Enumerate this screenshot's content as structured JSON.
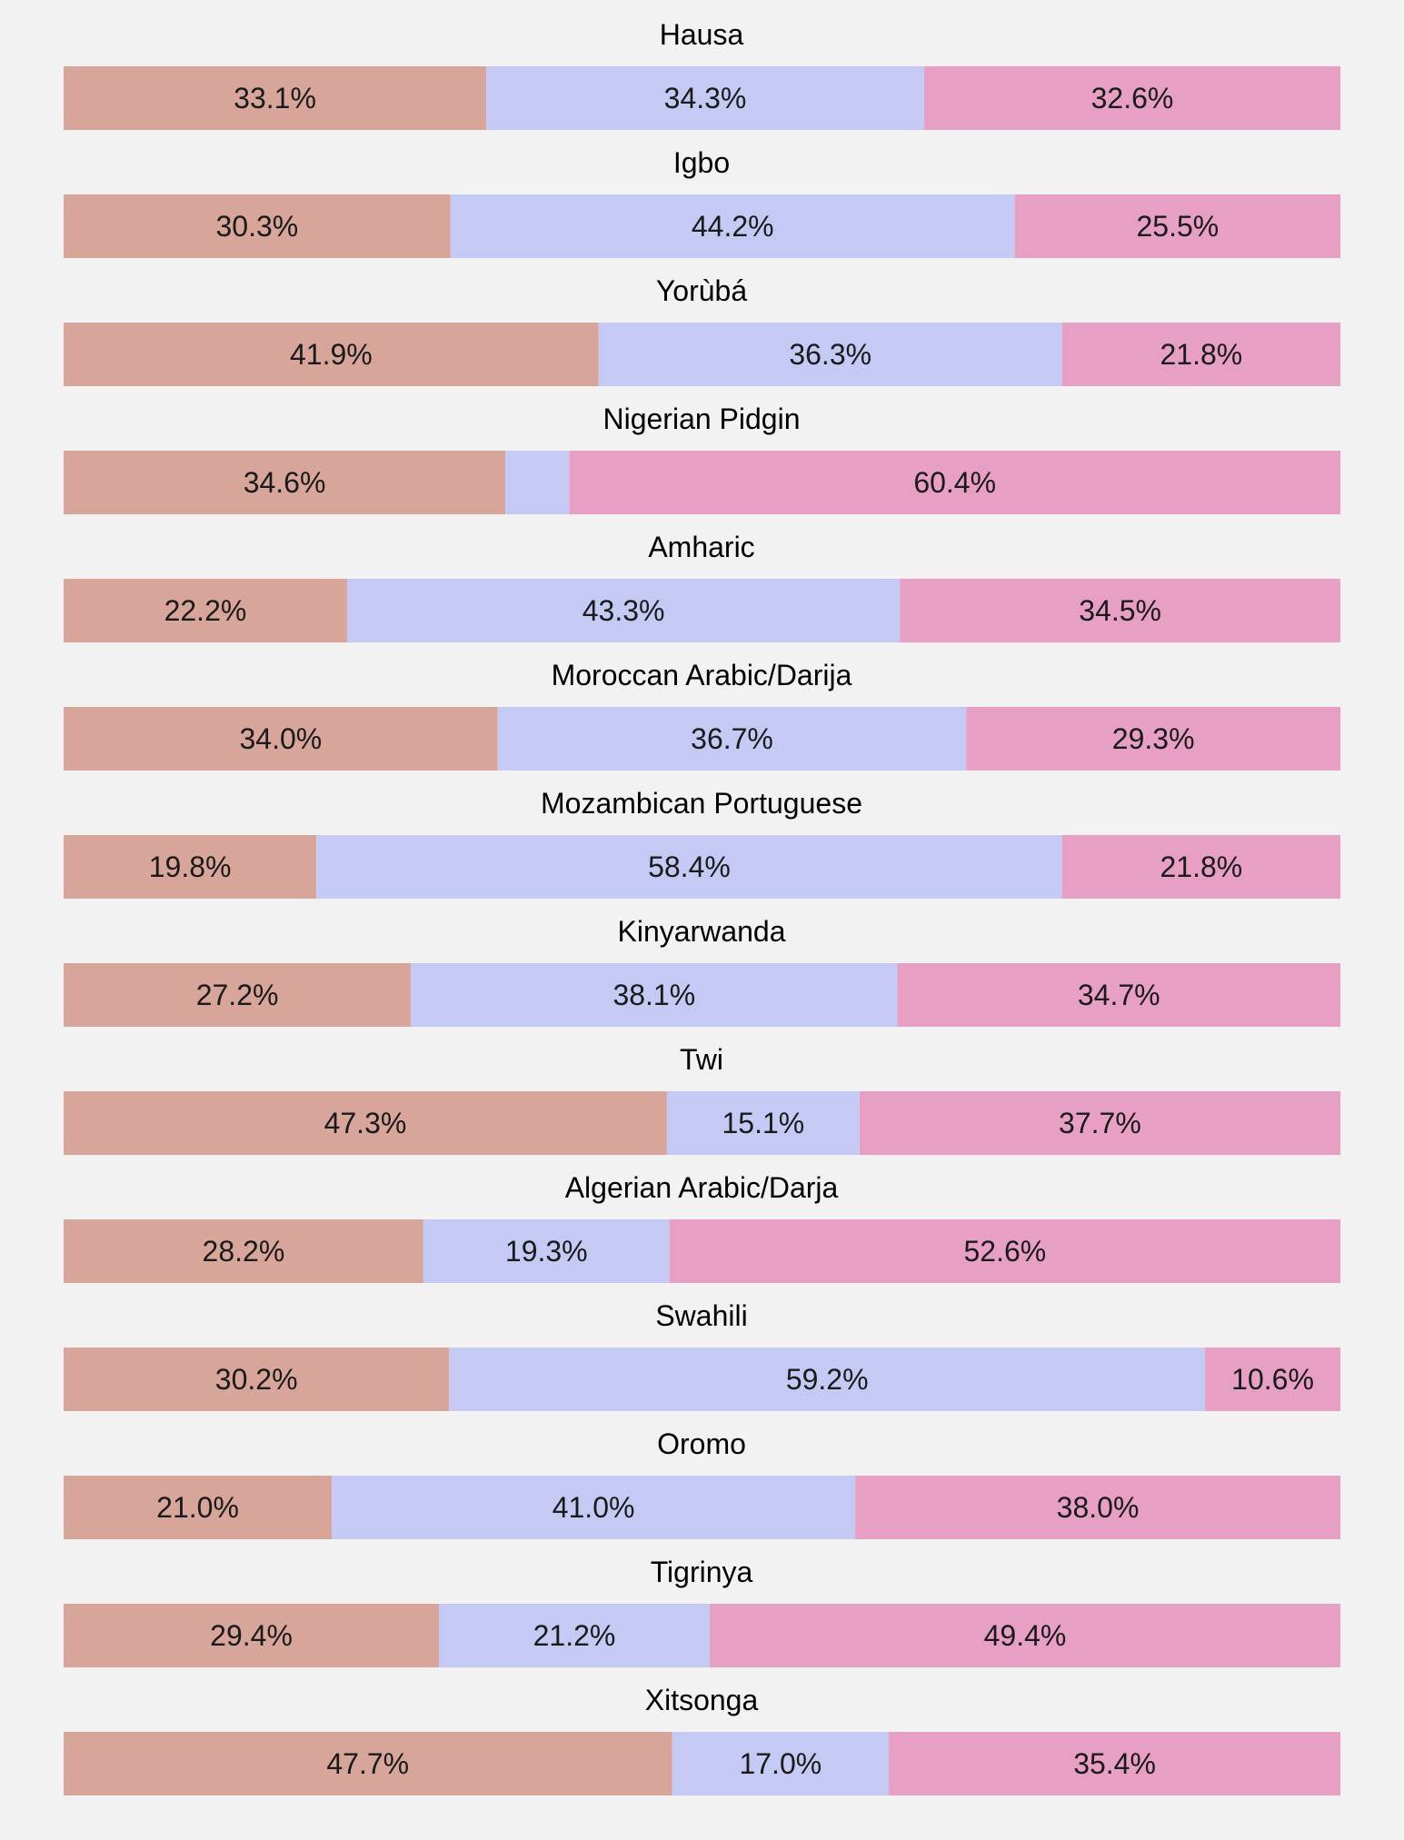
{
  "chart_data": {
    "type": "bar",
    "orientation": "horizontal",
    "stacked": true,
    "normalized_percent": true,
    "xlim": [
      0,
      100
    ],
    "grid": false,
    "legend": "none",
    "series": [
      {
        "name": "segment-1",
        "color": "#d8a59a"
      },
      {
        "name": "segment-2",
        "color": "#c5caf5"
      },
      {
        "name": "segment-3",
        "color": "#e7a0c4"
      }
    ],
    "rows": [
      {
        "title": "Hausa",
        "values": [
          33.1,
          34.3,
          32.6
        ],
        "labels": [
          "33.1%",
          "34.3%",
          "32.6%"
        ]
      },
      {
        "title": "Igbo",
        "values": [
          30.3,
          44.2,
          25.5
        ],
        "labels": [
          "30.3%",
          "44.2%",
          "25.5%"
        ]
      },
      {
        "title": "Yorùbá",
        "values": [
          41.9,
          36.3,
          21.8
        ],
        "labels": [
          "41.9%",
          "36.3%",
          "21.8%"
        ]
      },
      {
        "title": "Nigerian Pidgin",
        "values": [
          34.6,
          5.0,
          60.4
        ],
        "labels": [
          "34.6%",
          "",
          "60.4%"
        ]
      },
      {
        "title": "Amharic",
        "values": [
          22.2,
          43.3,
          34.5
        ],
        "labels": [
          "22.2%",
          "43.3%",
          "34.5%"
        ]
      },
      {
        "title": "Moroccan Arabic/Darija",
        "values": [
          34.0,
          36.7,
          29.3
        ],
        "labels": [
          "34.0%",
          "36.7%",
          "29.3%"
        ]
      },
      {
        "title": "Mozambican Portuguese",
        "values": [
          19.8,
          58.4,
          21.8
        ],
        "labels": [
          "19.8%",
          "58.4%",
          "21.8%"
        ]
      },
      {
        "title": "Kinyarwanda",
        "values": [
          27.2,
          38.1,
          34.7
        ],
        "labels": [
          "27.2%",
          "38.1%",
          "34.7%"
        ]
      },
      {
        "title": "Twi",
        "values": [
          47.3,
          15.1,
          37.7
        ],
        "labels": [
          "47.3%",
          "15.1%",
          "37.7%"
        ]
      },
      {
        "title": "Algerian Arabic/Darja",
        "values": [
          28.2,
          19.3,
          52.6
        ],
        "labels": [
          "28.2%",
          "19.3%",
          "52.6%"
        ]
      },
      {
        "title": "Swahili",
        "values": [
          30.2,
          59.2,
          10.6
        ],
        "labels": [
          "30.2%",
          "59.2%",
          "10.6%"
        ]
      },
      {
        "title": "Oromo",
        "values": [
          21.0,
          41.0,
          38.0
        ],
        "labels": [
          "21.0%",
          "41.0%",
          "38.0%"
        ]
      },
      {
        "title": "Tigrinya",
        "values": [
          29.4,
          21.2,
          49.4
        ],
        "labels": [
          "29.4%",
          "21.2%",
          "49.4%"
        ]
      },
      {
        "title": "Xitsonga",
        "values": [
          47.7,
          17.0,
          35.4
        ],
        "labels": [
          "47.7%",
          "17.0%",
          "35.4%"
        ]
      }
    ]
  }
}
